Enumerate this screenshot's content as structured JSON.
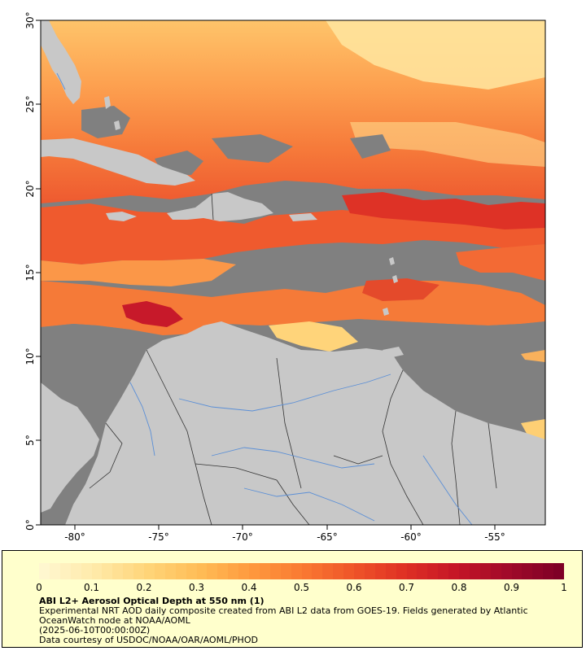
{
  "map": {
    "lat_labels": [
      "30°",
      "25°",
      "20°",
      "15°",
      "10°",
      "5°",
      "0°"
    ],
    "lon_labels": [
      "-80°",
      "-75°",
      "-70°",
      "-65°",
      "-60°",
      "-55°"
    ],
    "colors": {
      "land": "#c8c8c8",
      "no_data": "#808080",
      "river": "#5b8fd6",
      "border": "#333333"
    }
  },
  "legend": {
    "ticks": [
      "0",
      "0.1",
      "0.2",
      "0.3",
      "0.4",
      "0.5",
      "0.6",
      "0.7",
      "0.8",
      "0.9",
      "1"
    ],
    "palette": [
      "#fff7cf",
      "#ffe9a8",
      "#ffd578",
      "#ffbd56",
      "#fe9a3e",
      "#fa7a32",
      "#ef5528",
      "#df3024",
      "#c51526",
      "#a10a2a",
      "#7f0026"
    ]
  },
  "caption": {
    "title": "ABI L2+ Aerosol Optical Depth at 550 nm (1)",
    "description_line1": "Experimental NRT AOD daily composite created from ABI L2 data from GOES-19. Fields generated by Atlantic",
    "description_line2": "OceanWatch node at NOAA/AOML",
    "date": "(2025-06-10T00:00:00Z)",
    "credit": "Data courtesy of USDOC/NOAA/OAR/AOML/PHOD"
  }
}
